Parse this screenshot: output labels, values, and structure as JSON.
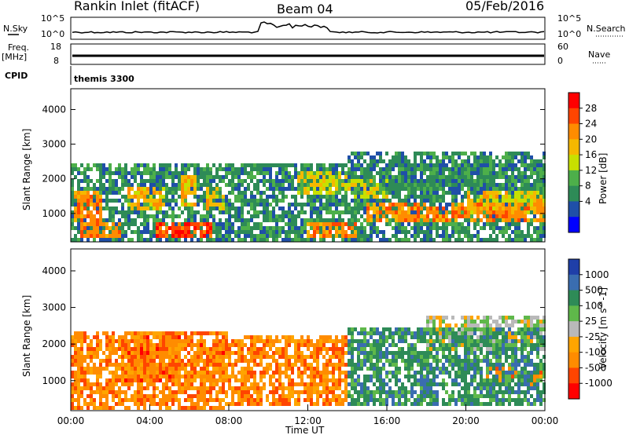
{
  "header": {
    "station": "Rankin Inlet (fitACF)",
    "beam": "Beam 04",
    "date": "05/Feb/2016"
  },
  "strip": {
    "nsky_label": "N.Sky",
    "nsearch_label": "N.Search",
    "nsky_ticks": [
      "10^5",
      "10^0"
    ],
    "nsearch_ticks": [
      "10^5",
      "10^0"
    ],
    "freq_label": "Freq.",
    "freq_unit": "[MHz]",
    "freq_ticks": [
      "18",
      "8"
    ],
    "nave_label": "Nave",
    "nave_ticks": [
      "60",
      "0"
    ],
    "cpid_label": "CPID",
    "cpid_value": "themis 3300"
  },
  "chart_data": [
    {
      "type": "heatmap",
      "name": "power",
      "ylabel": "Slant Range [km]",
      "xlabel": "",
      "x_ticks": [
        "00:00",
        "04:00",
        "08:00",
        "12:00",
        "16:00",
        "20:00",
        "00:00"
      ],
      "y_ticks": [
        1000,
        2000,
        3000,
        4000
      ],
      "xlim_hours": [
        0,
        24
      ],
      "ylim_km": [
        180,
        4600
      ],
      "colorbar": {
        "label": "Power [dB]",
        "ticks": [
          "28",
          "24",
          "20",
          "16",
          "12",
          "8",
          "4"
        ],
        "colors": [
          "#ff0000",
          "#ff4500",
          "#ff8c00",
          "#f5b800",
          "#c8e000",
          "#4daf4a",
          "#2e8b57",
          "#1f4fa8",
          "#0000ff"
        ]
      },
      "regions": [
        {
          "t0": 0.2,
          "t1": 1.6,
          "r0": 800,
          "r1": 1700,
          "level": 6
        },
        {
          "t0": 0.5,
          "t1": 2.6,
          "r0": 300,
          "r1": 700,
          "level": 6
        },
        {
          "t0": 2.8,
          "t1": 4.8,
          "r0": 1100,
          "r1": 1800,
          "level": 5
        },
        {
          "t0": 4.3,
          "t1": 7.2,
          "r0": 250,
          "r1": 700,
          "level": 7
        },
        {
          "t0": 5.6,
          "t1": 6.4,
          "r0": 1200,
          "r1": 2100,
          "level": 5
        },
        {
          "t0": 6.9,
          "t1": 7.8,
          "r0": 1100,
          "r1": 1800,
          "level": 5
        },
        {
          "t0": 11.5,
          "t1": 14.0,
          "r0": 1500,
          "r1": 2200,
          "level": 4
        },
        {
          "t0": 12.0,
          "t1": 14.5,
          "r0": 300,
          "r1": 700,
          "level": 6
        },
        {
          "t0": 14.0,
          "t1": 16.0,
          "r0": 1400,
          "r1": 2000,
          "level": 4
        },
        {
          "t0": 15.0,
          "t1": 24.0,
          "r0": 700,
          "r1": 1300,
          "level": 6
        },
        {
          "t0": 20.0,
          "t1": 24.0,
          "r0": 1000,
          "r1": 1700,
          "level": 5
        },
        {
          "t0": 14.0,
          "t1": 24.0,
          "r0": 1600,
          "r1": 2800,
          "level": 2
        },
        {
          "t0": 0.0,
          "t1": 24.0,
          "r0": 200,
          "r1": 2400,
          "level": 2
        }
      ]
    },
    {
      "type": "heatmap",
      "name": "velocity",
      "ylabel": "Slant Range [km]",
      "xlabel": "Time UT",
      "x_ticks": [
        "00:00",
        "04:00",
        "08:00",
        "12:00",
        "16:00",
        "20:00",
        "00:00"
      ],
      "y_ticks": [
        1000,
        2000,
        3000,
        4000
      ],
      "xlim_hours": [
        0,
        24
      ],
      "ylim_km": [
        180,
        4600
      ],
      "colorbar": {
        "label": "Velocity [m s^-1]",
        "ticks": [
          "1000",
          "500",
          "100",
          "25",
          "-25",
          "-100",
          "-500",
          "-1000"
        ],
        "colors": [
          "#1f3fa8",
          "#3a6db0",
          "#2e8b57",
          "#5fb84a",
          "#b9b9b9",
          "#ffa500",
          "#ff8c00",
          "#ff4500",
          "#ff0000"
        ]
      },
      "regions": [
        {
          "t0": 0.0,
          "t1": 8.0,
          "r0": 200,
          "r1": 2400,
          "level": 2
        },
        {
          "t0": 2.5,
          "t1": 5.5,
          "r0": 1000,
          "r1": 2200,
          "level": 1
        },
        {
          "t0": 6.5,
          "t1": 8.0,
          "r0": 1000,
          "r1": 2000,
          "level": 1
        },
        {
          "t0": 8.0,
          "t1": 14.0,
          "r0": 300,
          "r1": 2200,
          "level": 2
        },
        {
          "t0": 14.0,
          "t1": 24.0,
          "r0": 300,
          "r1": 2500,
          "level": 6
        },
        {
          "t0": 18.0,
          "t1": 24.0,
          "r0": 1800,
          "r1": 2800,
          "level": 4
        },
        {
          "t0": 21.0,
          "t1": 24.0,
          "r0": 800,
          "r1": 1400,
          "level": 2
        }
      ]
    }
  ]
}
